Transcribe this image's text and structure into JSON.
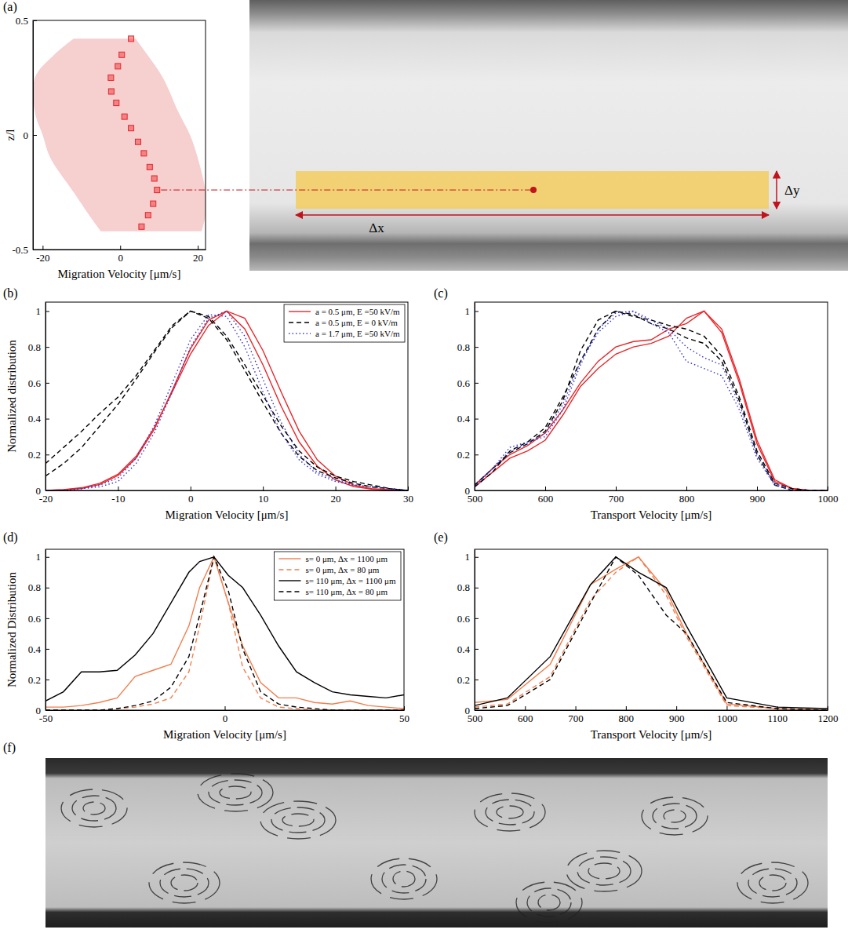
{
  "chart_data": [
    {
      "type": "scatter",
      "panel": "(a)",
      "xlabel": "Migration Velocity [μm/s]",
      "ylabel": "z/l",
      "xlim": [
        -22.5,
        22
      ],
      "ylim": [
        -0.5,
        0.5
      ],
      "xticks": [
        -20,
        0,
        20
      ],
      "yticks": [
        -0.5,
        0,
        0.5
      ],
      "series": [
        {
          "color": "#e8262a",
          "marker": "square",
          "x": [
            2.8,
            0.4,
            -0.6,
            -2.4,
            -2.3,
            -1.0,
            1.1,
            2.8,
            4.6,
            6.1,
            7.6,
            8.8,
            9.5,
            8.5,
            7.2,
            5.5
          ],
          "values": [
            0.42,
            0.35,
            0.3,
            0.25,
            0.19,
            0.14,
            0.08,
            0.03,
            -0.03,
            -0.08,
            -0.14,
            -0.19,
            -0.24,
            -0.3,
            -0.35,
            -0.4
          ]
        }
      ],
      "band": {
        "color": "#f6cfcf",
        "values": [
          -0.42,
          -0.35,
          -0.25,
          -0.1,
          0,
          0.1,
          0.25,
          0.35,
          0.42
        ],
        "low": [
          -5,
          -8,
          -12,
          -18,
          -20,
          -22,
          -22,
          -17,
          -12
        ],
        "high": [
          21,
          22,
          22,
          20,
          18,
          15,
          11,
          7,
          4
        ]
      },
      "annotations": [
        "Δy",
        "Δx"
      ]
    },
    {
      "type": "line",
      "panel": "(b)",
      "xlabel": "Migration Velocity [μm/s]",
      "ylabel": "Normalized distribution",
      "xlim": [
        -20,
        30
      ],
      "ylim": [
        0,
        1.05
      ],
      "xticks": [
        -20,
        -10,
        0,
        10,
        20,
        30
      ],
      "yticks": [
        0,
        0.2,
        0.4,
        0.6,
        0.8,
        1
      ],
      "legend": "upper right",
      "x": [
        -20,
        -17.5,
        -15,
        -12.5,
        -10,
        -7.5,
        -5,
        -2.5,
        0,
        2.5,
        5,
        7.5,
        10,
        12.5,
        15,
        17.5,
        20,
        22.5,
        25,
        27.5,
        30
      ],
      "series": [
        {
          "name": "a = 0.5 μm, E =50 kV/m",
          "color": "#e8262a",
          "line_style": "solid",
          "values": [
            [
              0,
              0.003,
              0.011,
              0.033,
              0.083,
              0.18,
              0.34,
              0.56,
              0.79,
              0.95,
              1,
              0.9,
              0.7,
              0.47,
              0.27,
              0.135,
              0.058,
              0.022,
              0.007,
              0.002,
              0
            ],
            [
              0,
              0.005,
              0.015,
              0.04,
              0.09,
              0.19,
              0.35,
              0.55,
              0.76,
              0.92,
              1,
              0.96,
              0.78,
              0.55,
              0.33,
              0.17,
              0.08,
              0.03,
              0.01,
              0.003,
              0
            ]
          ]
        },
        {
          "name": "a = 0.5 μm, E = 0 kV/m",
          "color": "#000000",
          "line_style": "dashed",
          "values": [
            [
              0.15,
              0.24,
              0.33,
              0.43,
              0.52,
              0.64,
              0.78,
              0.92,
              1,
              0.97,
              0.86,
              0.7,
              0.53,
              0.36,
              0.22,
              0.13,
              0.08,
              0.05,
              0.03,
              0.01,
              0
            ],
            [
              0.08,
              0.15,
              0.24,
              0.36,
              0.48,
              0.62,
              0.77,
              0.91,
              1,
              0.96,
              0.84,
              0.67,
              0.49,
              0.32,
              0.19,
              0.11,
              0.07,
              0.04,
              0.02,
              0.01,
              0
            ]
          ]
        },
        {
          "name": "a = 1.7 μm, E =50 kV/m",
          "color": "#3333cc",
          "line_style": "dotted",
          "values": [
            [
              0,
              0,
              0.01,
              0.02,
              0.05,
              0.15,
              0.32,
              0.55,
              0.8,
              0.96,
              1,
              0.86,
              0.62,
              0.38,
              0.2,
              0.1,
              0.06,
              0.03,
              0.02,
              0.01,
              0
            ],
            [
              0,
              0,
              0.01,
              0.03,
              0.07,
              0.18,
              0.36,
              0.6,
              0.84,
              0.98,
              0.97,
              0.8,
              0.55,
              0.32,
              0.17,
              0.09,
              0.05,
              0.03,
              0.02,
              0.01,
              0
            ]
          ]
        }
      ]
    },
    {
      "type": "line",
      "panel": "(c)",
      "xlabel": "Transport Velocity [μm/s]",
      "xlim": [
        500,
        1000
      ],
      "ylim": [
        0,
        1.05
      ],
      "xticks": [
        500,
        600,
        700,
        800,
        900,
        1000
      ],
      "yticks": [
        0,
        0.2,
        0.4,
        0.6,
        0.8,
        1
      ],
      "x": [
        500,
        525,
        550,
        575,
        600,
        625,
        650,
        675,
        700,
        725,
        750,
        775,
        800,
        825,
        850,
        875,
        900,
        925,
        950,
        975,
        1000
      ],
      "series": [
        {
          "color": "#e8262a",
          "line_style": "solid",
          "values": [
            [
              0.02,
              0.1,
              0.18,
              0.22,
              0.28,
              0.42,
              0.58,
              0.68,
              0.76,
              0.8,
              0.82,
              0.86,
              0.96,
              1,
              0.88,
              0.6,
              0.26,
              0.05,
              0.01,
              0,
              0
            ],
            [
              0.03,
              0.12,
              0.2,
              0.25,
              0.32,
              0.45,
              0.6,
              0.72,
              0.8,
              0.83,
              0.84,
              0.9,
              0.93,
              1,
              0.9,
              0.62,
              0.28,
              0.06,
              0.01,
              0,
              0
            ]
          ]
        },
        {
          "color": "#000000",
          "line_style": "dashed",
          "values": [
            [
              0.02,
              0.1,
              0.22,
              0.27,
              0.35,
              0.52,
              0.72,
              0.9,
              1,
              0.97,
              0.95,
              0.92,
              0.9,
              0.86,
              0.75,
              0.52,
              0.22,
              0.04,
              0.01,
              0,
              0
            ],
            [
              0.03,
              0.12,
              0.21,
              0.26,
              0.33,
              0.5,
              0.78,
              0.95,
              1,
              0.98,
              0.93,
              0.9,
              0.85,
              0.82,
              0.72,
              0.5,
              0.2,
              0.03,
              0,
              0,
              0
            ]
          ]
        },
        {
          "color": "#3333cc",
          "line_style": "dotted",
          "values": [
            [
              0.02,
              0.12,
              0.24,
              0.27,
              0.3,
              0.45,
              0.7,
              0.9,
              0.99,
              1,
              0.93,
              0.88,
              0.72,
              0.68,
              0.64,
              0.45,
              0.18,
              0.03,
              0,
              0,
              0
            ],
            [
              0.03,
              0.12,
              0.22,
              0.26,
              0.32,
              0.48,
              0.72,
              0.88,
              0.97,
              1,
              0.95,
              0.9,
              0.8,
              0.74,
              0.7,
              0.48,
              0.2,
              0.04,
              0,
              0,
              0
            ]
          ]
        }
      ]
    },
    {
      "type": "line",
      "panel": "(d)",
      "xlabel": "Migration Velocity [μm/s]",
      "ylabel": "Normalized Distribution",
      "xlim": [
        -50,
        50
      ],
      "ylim": [
        0,
        1.05
      ],
      "xticks": [
        -50,
        0,
        50
      ],
      "yticks": [
        0,
        0.2,
        0.4,
        0.6,
        0.8,
        1
      ],
      "legend": "upper right",
      "x": [
        -50,
        -45,
        -40,
        -35,
        -30,
        -25,
        -20,
        -15,
        -10,
        -7,
        -3,
        1,
        5,
        10,
        15,
        20,
        25,
        30,
        35,
        40,
        45,
        50
      ],
      "series": [
        {
          "name": "s= 0 μm, Δx = 1100 μm",
          "color": "#f07f4f",
          "line_style": "solid",
          "values": [
            0.02,
            0.02,
            0.03,
            0.05,
            0.08,
            0.22,
            0.26,
            0.3,
            0.55,
            0.8,
            1,
            0.7,
            0.42,
            0.18,
            0.08,
            0.08,
            0.05,
            0.04,
            0.06,
            0.03,
            0.02,
            0.01
          ]
        },
        {
          "name": "s= 0 μm, Δx = 80 μm",
          "color": "#f07f4f",
          "line_style": "dashed",
          "values": [
            0,
            0,
            0,
            0,
            0.01,
            0.02,
            0.04,
            0.08,
            0.25,
            0.55,
            1,
            0.7,
            0.28,
            0.08,
            0.02,
            0.01,
            0,
            0,
            0,
            0,
            0,
            0
          ]
        },
        {
          "name": "s= 110 μm, Δx = 1100 μm",
          "color": "#000000",
          "line_style": "solid",
          "values": [
            0.06,
            0.12,
            0.25,
            0.25,
            0.26,
            0.36,
            0.5,
            0.7,
            0.9,
            0.97,
            1,
            0.88,
            0.8,
            0.62,
            0.42,
            0.25,
            0.18,
            0.12,
            0.1,
            0.09,
            0.08,
            0.1
          ]
        },
        {
          "name": "s= 110 μm, Δx = 80 μm",
          "color": "#000000",
          "line_style": "dashed",
          "values": [
            0,
            0,
            0,
            0,
            0.01,
            0.03,
            0.06,
            0.15,
            0.35,
            0.62,
            1,
            0.78,
            0.4,
            0.12,
            0.04,
            0.02,
            0.01,
            0,
            0,
            0,
            0,
            0
          ]
        }
      ]
    },
    {
      "type": "line",
      "panel": "(e)",
      "xlabel": "Transport Velocity [μm/s]",
      "xlim": [
        500,
        1200
      ],
      "ylim": [
        0,
        1.05
      ],
      "xticks": [
        500,
        600,
        700,
        800,
        900,
        1000,
        1100,
        1200
      ],
      "yticks": [
        0,
        0.2,
        0.4,
        0.6,
        0.8,
        1
      ],
      "x": [
        500,
        565,
        650,
        730,
        780,
        825,
        880,
        920,
        1000,
        1100,
        1200
      ],
      "series": [
        {
          "color": "#f07f4f",
          "line_style": "solid",
          "values": [
            0.05,
            0.07,
            0.3,
            0.82,
            0.92,
            1,
            0.78,
            0.5,
            0.04,
            0.01,
            0
          ]
        },
        {
          "color": "#f07f4f",
          "line_style": "dashed",
          "values": [
            0.02,
            0.04,
            0.22,
            0.72,
            0.9,
            1,
            0.75,
            0.48,
            0.03,
            0.01,
            0
          ]
        },
        {
          "color": "#000000",
          "line_style": "solid",
          "values": [
            0.03,
            0.08,
            0.35,
            0.82,
            1,
            0.9,
            0.8,
            0.55,
            0.08,
            0.02,
            0.01
          ]
        },
        {
          "color": "#000000",
          "line_style": "dashed",
          "values": [
            0.01,
            0.03,
            0.2,
            0.7,
            1,
            0.88,
            0.62,
            0.5,
            0.05,
            0.01,
            0
          ]
        }
      ]
    },
    {
      "type": "image",
      "panel": "(f)"
    }
  ]
}
